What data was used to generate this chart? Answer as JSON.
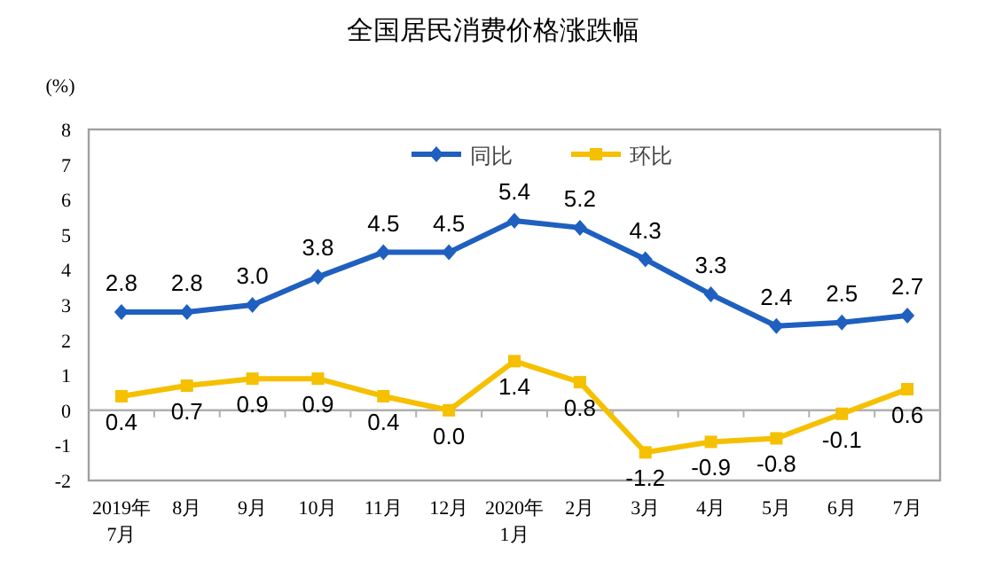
{
  "chart_data": {
    "type": "line",
    "title": "全国居民消费价格涨跌幅",
    "ylabel": "(%)",
    "categories": [
      "2019年\n7月",
      "8月",
      "9月",
      "10月",
      "11月",
      "12月",
      "2020年\n1月",
      "2月",
      "3月",
      "4月",
      "5月",
      "6月",
      "7月"
    ],
    "series": [
      {
        "name": "同比",
        "color": "#1f5fbf",
        "marker": "diamond",
        "values": [
          2.8,
          2.8,
          3.0,
          3.8,
          4.5,
          4.5,
          5.4,
          5.2,
          4.3,
          3.3,
          2.4,
          2.5,
          2.7
        ],
        "value_labels": [
          "2.8",
          "2.8",
          "3.0",
          "3.8",
          "4.5",
          "4.5",
          "5.4",
          "5.2",
          "4.3",
          "3.3",
          "2.4",
          "2.5",
          "2.7"
        ]
      },
      {
        "name": "环比",
        "color": "#f5c000",
        "marker": "square",
        "values": [
          0.4,
          0.7,
          0.9,
          0.9,
          0.4,
          0.0,
          1.4,
          0.8,
          -1.2,
          -0.9,
          -0.8,
          -0.1,
          0.6
        ],
        "value_labels": [
          "0.4",
          "0.7",
          "0.9",
          "0.9",
          "0.4",
          "0.0",
          "1.4",
          "0.8",
          "-1.2",
          "-0.9",
          "-0.8",
          "-0.1",
          "0.6"
        ]
      }
    ],
    "ylim": [
      -2,
      8
    ],
    "yticks": [
      -2,
      -1,
      0,
      1,
      2,
      3,
      4,
      5,
      6,
      7,
      8
    ],
    "legend": "top"
  }
}
